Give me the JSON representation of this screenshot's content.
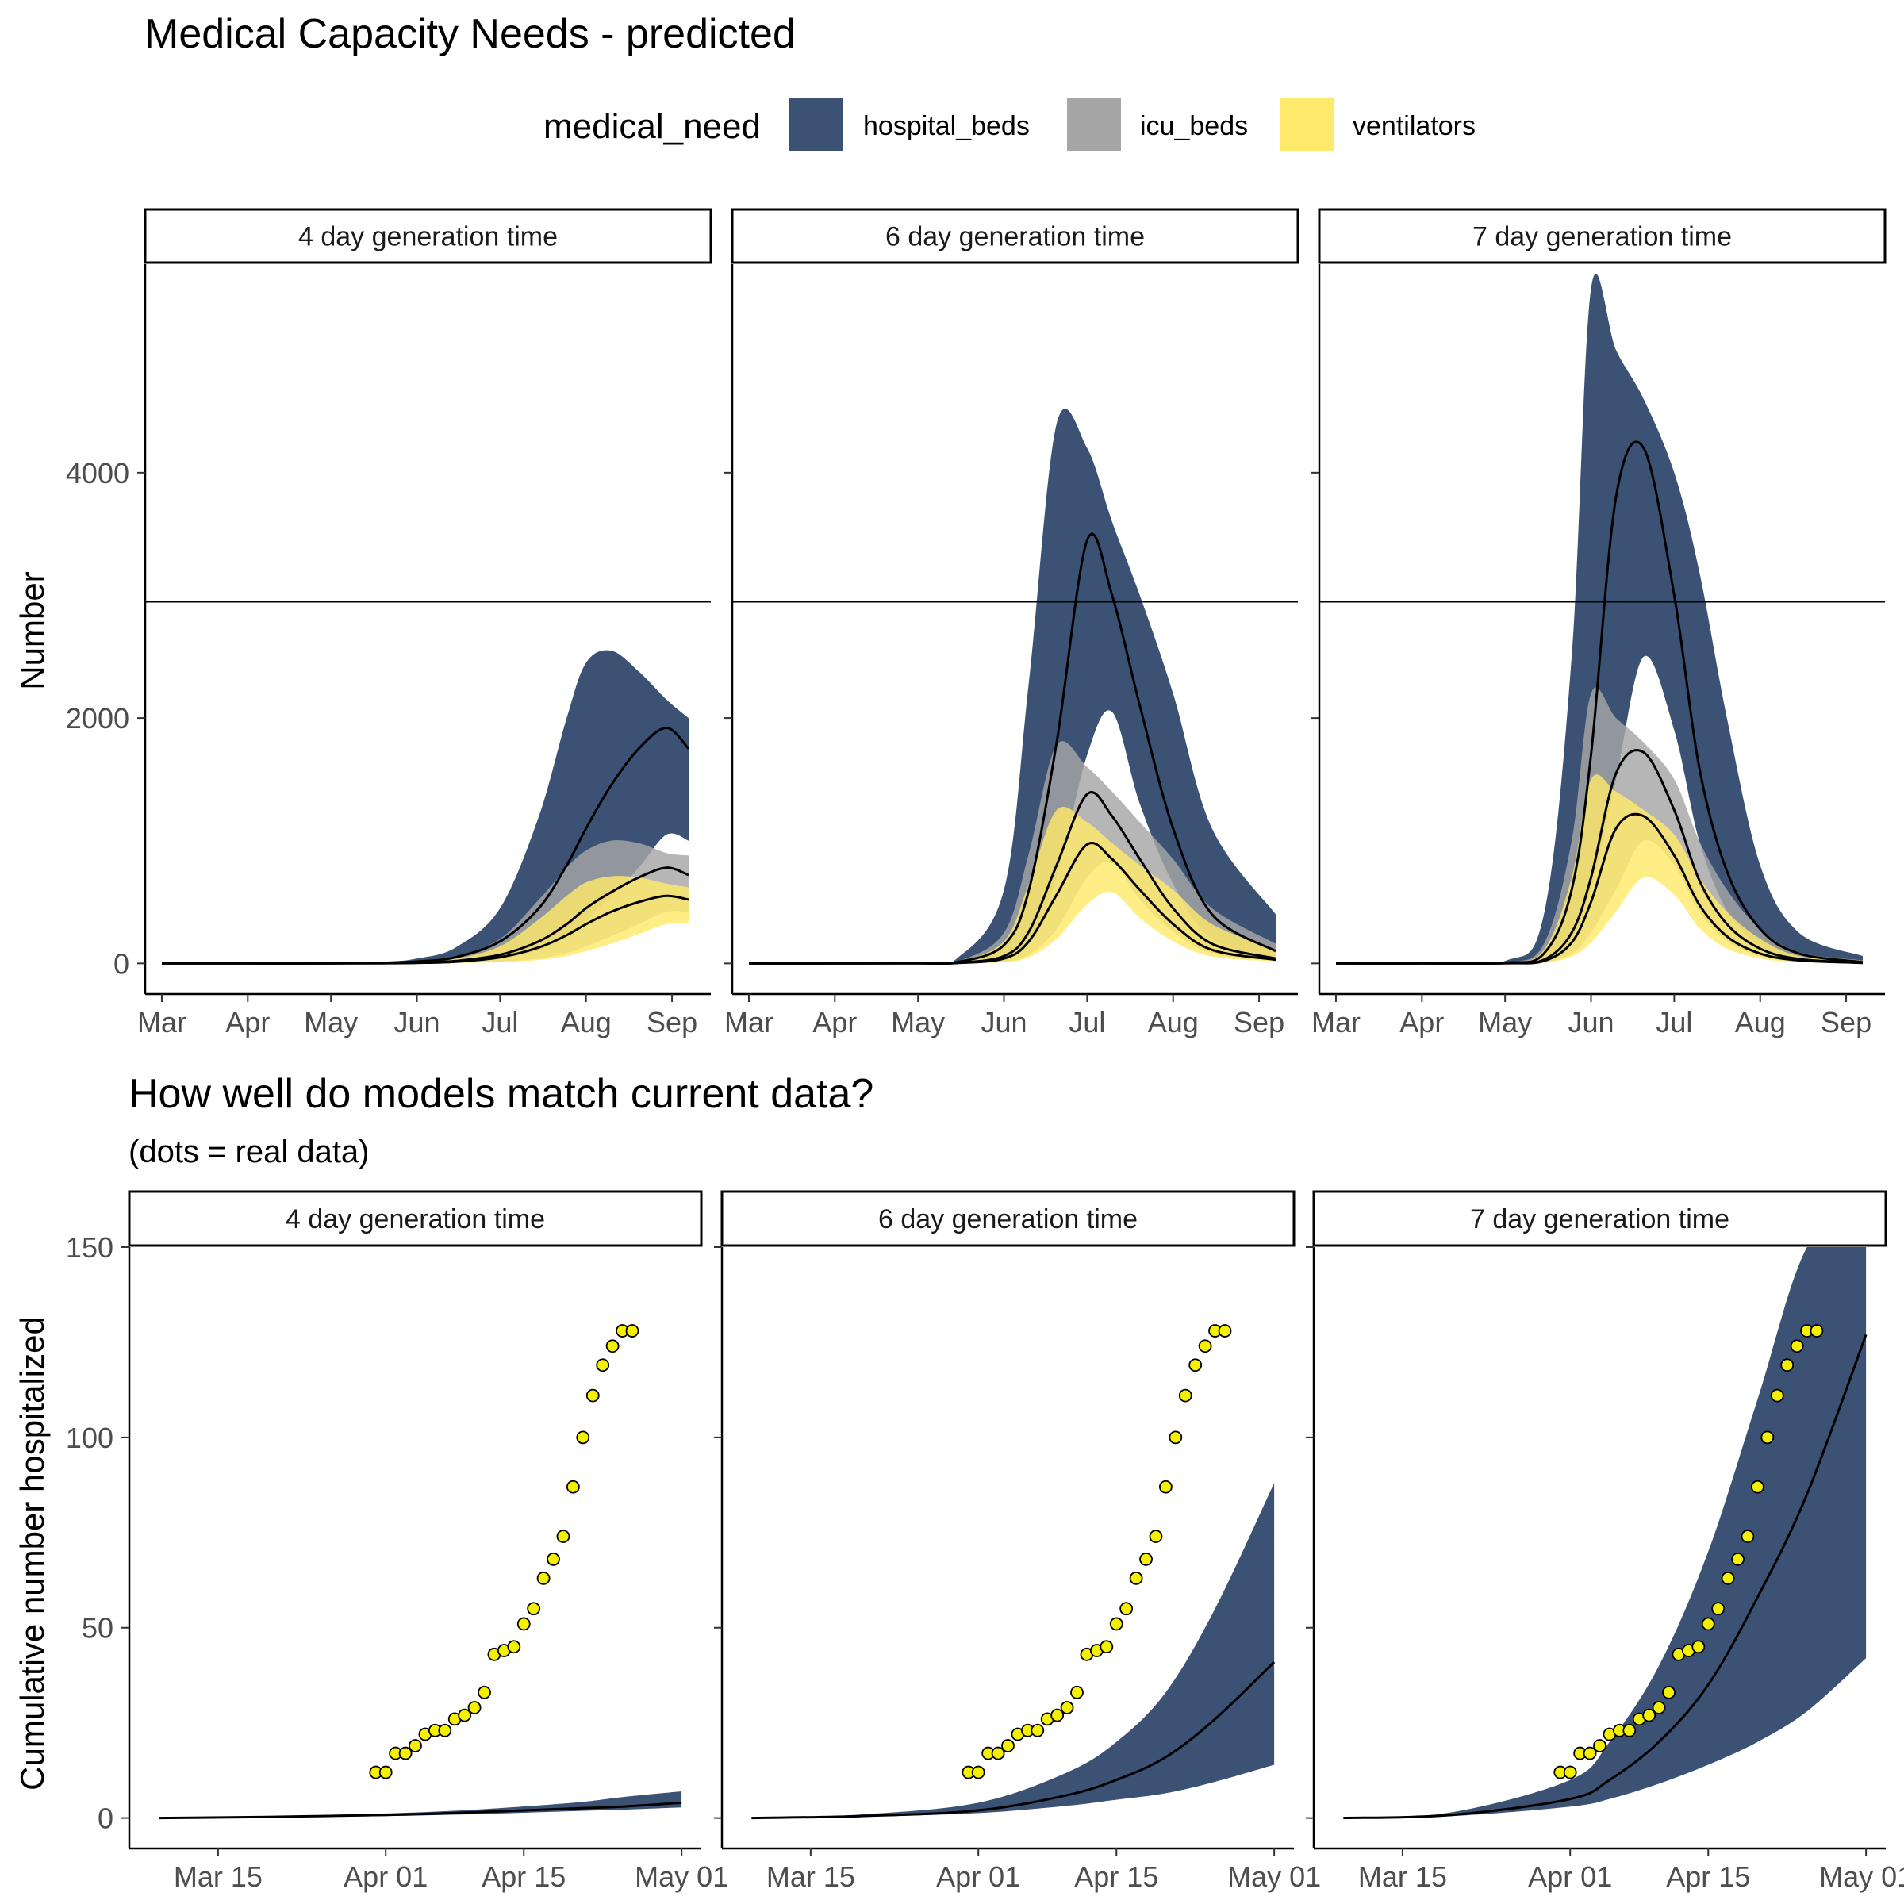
{
  "colors": {
    "hospital_beds": "#3b5275",
    "icu_beds": "#a6a6a6",
    "ventilators": "#ffe96b",
    "dot_fill": "#f4f000",
    "line": "#000000"
  },
  "legend": {
    "title": "medical_need",
    "items": [
      "hospital_beds",
      "icu_beds",
      "ventilators"
    ]
  },
  "chart_data": [
    {
      "type": "area",
      "title": "Medical Capacity Needs - predicted",
      "ylabel": "Number",
      "xlabel": "",
      "x_axis": "date",
      "xlim": [
        "2020-02-24",
        "2020-09-15"
      ],
      "ylim": [
        -250,
        5700
      ],
      "y_ticks": [
        0,
        2000,
        4000
      ],
      "x_ticks": [
        {
          "date": "2020-03-01",
          "label": "Mar"
        },
        {
          "date": "2020-04-01",
          "label": "Apr"
        },
        {
          "date": "2020-05-01",
          "label": "May"
        },
        {
          "date": "2020-06-01",
          "label": "Jun"
        },
        {
          "date": "2020-07-01",
          "label": "Jul"
        },
        {
          "date": "2020-08-01",
          "label": "Aug"
        },
        {
          "date": "2020-09-01",
          "label": "Sep"
        }
      ],
      "capacity_line": 2950,
      "grid": false,
      "legend_position": "top",
      "panels": [
        {
          "label": "4 day generation time",
          "series": [
            {
              "name": "hospital_beds",
              "x": [
                "2020-03-01",
                "2020-04-01",
                "2020-05-01",
                "2020-05-20",
                "2020-06-01",
                "2020-06-15",
                "2020-07-01",
                "2020-07-15",
                "2020-07-25",
                "2020-08-01",
                "2020-08-10",
                "2020-08-20",
                "2020-08-30",
                "2020-09-07"
              ],
              "median": [
                0,
                0,
                0,
                5,
                15,
                50,
                180,
                450,
                800,
                1100,
                1450,
                1750,
                1920,
                1750
              ],
              "lower": [
                0,
                0,
                0,
                0,
                3,
                10,
                40,
                110,
                220,
                350,
                550,
                780,
                1050,
                1000
              ],
              "upper": [
                0,
                0,
                0,
                12,
                40,
                130,
                450,
                1200,
                2000,
                2450,
                2550,
                2380,
                2150,
                2000
              ]
            },
            {
              "name": "icu_beds",
              "x": [
                "2020-03-01",
                "2020-04-01",
                "2020-05-01",
                "2020-05-20",
                "2020-06-01",
                "2020-06-15",
                "2020-07-01",
                "2020-07-15",
                "2020-07-25",
                "2020-08-01",
                "2020-08-10",
                "2020-08-20",
                "2020-08-30",
                "2020-09-07"
              ],
              "median": [
                0,
                0,
                0,
                2,
                6,
                20,
                70,
                180,
                320,
                450,
                580,
                700,
                780,
                720
              ],
              "lower": [
                0,
                0,
                0,
                0,
                1,
                4,
                15,
                40,
                85,
                140,
                220,
                320,
                420,
                420
              ],
              "upper": [
                0,
                0,
                0,
                5,
                15,
                55,
                200,
                520,
                780,
                920,
                1000,
                980,
                900,
                880
              ]
            },
            {
              "name": "ventilators",
              "x": [
                "2020-03-01",
                "2020-04-01",
                "2020-05-01",
                "2020-05-20",
                "2020-06-01",
                "2020-06-15",
                "2020-07-01",
                "2020-07-15",
                "2020-07-25",
                "2020-08-01",
                "2020-08-10",
                "2020-08-20",
                "2020-08-30",
                "2020-09-07"
              ],
              "median": [
                0,
                0,
                0,
                1,
                4,
                14,
                50,
                130,
                230,
                320,
                420,
                500,
                550,
                520
              ],
              "lower": [
                0,
                0,
                0,
                0,
                1,
                3,
                10,
                28,
                60,
                100,
                160,
                240,
                320,
                330
              ],
              "upper": [
                0,
                0,
                0,
                4,
                11,
                38,
                140,
                360,
                550,
                660,
                710,
                700,
                650,
                620
              ]
            }
          ]
        },
        {
          "label": "6 day generation time",
          "series": [
            {
              "name": "hospital_beds",
              "x": [
                "2020-03-01",
                "2020-04-01",
                "2020-05-01",
                "2020-05-15",
                "2020-06-01",
                "2020-06-10",
                "2020-06-20",
                "2020-07-01",
                "2020-07-10",
                "2020-07-20",
                "2020-08-01",
                "2020-08-15",
                "2020-09-07"
              ],
              "median": [
                0,
                0,
                2,
                10,
                150,
                600,
                1800,
                3450,
                3000,
                2100,
                1100,
                400,
                100
              ],
              "lower": [
                0,
                0,
                0,
                2,
                40,
                180,
                700,
                1700,
                2050,
                1300,
                650,
                200,
                50
              ],
              "upper": [
                0,
                0,
                6,
                40,
                600,
                2300,
                4400,
                4200,
                3600,
                3000,
                2200,
                1100,
                400
              ]
            },
            {
              "name": "icu_beds",
              "x": [
                "2020-03-01",
                "2020-04-01",
                "2020-05-01",
                "2020-05-15",
                "2020-06-01",
                "2020-06-10",
                "2020-06-20",
                "2020-07-01",
                "2020-07-10",
                "2020-07-20",
                "2020-08-01",
                "2020-08-15",
                "2020-09-07"
              ],
              "median": [
                0,
                0,
                1,
                4,
                60,
                260,
                800,
                1380,
                1200,
                850,
                450,
                160,
                40
              ],
              "lower": [
                0,
                0,
                0,
                1,
                15,
                70,
                280,
                700,
                820,
                520,
                260,
                80,
                20
              ],
              "upper": [
                0,
                0,
                2,
                15,
                250,
                900,
                1780,
                1600,
                1400,
                1150,
                850,
                450,
                160
              ]
            },
            {
              "name": "ventilators",
              "x": [
                "2020-03-01",
                "2020-04-01",
                "2020-05-01",
                "2020-05-15",
                "2020-06-01",
                "2020-06-10",
                "2020-06-20",
                "2020-07-01",
                "2020-07-10",
                "2020-07-20",
                "2020-08-01",
                "2020-08-15",
                "2020-09-07"
              ],
              "median": [
                0,
                0,
                1,
                3,
                40,
                180,
                560,
                970,
                850,
                600,
                320,
                110,
                30
              ],
              "lower": [
                0,
                0,
                0,
                1,
                10,
                50,
                200,
                480,
                580,
                370,
                180,
                55,
                15
              ],
              "upper": [
                0,
                0,
                2,
                10,
                180,
                650,
                1250,
                1150,
                980,
                800,
                600,
                320,
                110
              ]
            }
          ]
        },
        {
          "label": "7 day generation time",
          "series": [
            {
              "name": "hospital_beds",
              "x": [
                "2020-03-01",
                "2020-04-01",
                "2020-05-01",
                "2020-05-15",
                "2020-05-25",
                "2020-06-01",
                "2020-06-10",
                "2020-06-20",
                "2020-07-01",
                "2020-07-10",
                "2020-07-20",
                "2020-08-01",
                "2020-08-15",
                "2020-09-07"
              ],
              "median": [
                0,
                0,
                5,
                80,
                600,
                1700,
                3800,
                4200,
                3000,
                1600,
                750,
                280,
                80,
                10
              ],
              "lower": [
                0,
                0,
                1,
                20,
                200,
                600,
                1500,
                2500,
                1900,
                1000,
                430,
                140,
                35,
                5
              ],
              "upper": [
                0,
                0,
                20,
                400,
                2500,
                5500,
                5000,
                4600,
                4000,
                3200,
                2000,
                800,
                250,
                60
              ]
            },
            {
              "name": "icu_beds",
              "x": [
                "2020-03-01",
                "2020-04-01",
                "2020-05-01",
                "2020-05-15",
                "2020-05-25",
                "2020-06-01",
                "2020-06-10",
                "2020-06-20",
                "2020-07-01",
                "2020-07-10",
                "2020-07-20",
                "2020-08-01",
                "2020-08-15",
                "2020-09-07"
              ],
              "median": [
                0,
                0,
                2,
                30,
                250,
                700,
                1550,
                1720,
                1250,
                680,
                320,
                120,
                35,
                5
              ],
              "lower": [
                0,
                0,
                0,
                8,
                80,
                250,
                600,
                1000,
                800,
                420,
                180,
                60,
                15,
                2
              ],
              "upper": [
                0,
                0,
                8,
                160,
                1000,
                2200,
                2000,
                1800,
                1500,
                1000,
                600,
                280,
                90,
                25
              ]
            },
            {
              "name": "ventilators",
              "x": [
                "2020-03-01",
                "2020-04-01",
                "2020-05-01",
                "2020-05-15",
                "2020-05-25",
                "2020-06-01",
                "2020-06-10",
                "2020-06-20",
                "2020-07-01",
                "2020-07-10",
                "2020-07-20",
                "2020-08-01",
                "2020-08-15",
                "2020-09-07"
              ],
              "median": [
                0,
                0,
                1,
                20,
                170,
                500,
                1100,
                1200,
                880,
                480,
                220,
                80,
                25,
                4
              ],
              "lower": [
                0,
                0,
                0,
                5,
                55,
                170,
                420,
                700,
                560,
                290,
                120,
                40,
                10,
                1
              ],
              "upper": [
                0,
                0,
                5,
                110,
                700,
                1500,
                1400,
                1250,
                1050,
                700,
                420,
                200,
                60,
                18
              ]
            }
          ]
        }
      ]
    },
    {
      "type": "area",
      "title": "How well do models match current data?",
      "subtitle": "(dots = real data)",
      "ylabel": "Cumulative number hospitalized",
      "xlabel": "",
      "x_axis": "date",
      "xlim": [
        "2020-03-06",
        "2020-05-03"
      ],
      "ylim": [
        -8,
        150
      ],
      "y_ticks": [
        0,
        50,
        100,
        150
      ],
      "x_ticks": [
        {
          "date": "2020-03-15",
          "label": "Mar 15"
        },
        {
          "date": "2020-04-01",
          "label": "Apr 01"
        },
        {
          "date": "2020-04-15",
          "label": "Apr 15"
        },
        {
          "date": "2020-05-01",
          "label": "May 01"
        }
      ],
      "grid": false,
      "observed": {
        "x": [
          "2020-03-31",
          "2020-04-01",
          "2020-04-02",
          "2020-04-03",
          "2020-04-04",
          "2020-04-05",
          "2020-04-06",
          "2020-04-07",
          "2020-04-08",
          "2020-04-09",
          "2020-04-10",
          "2020-04-11",
          "2020-04-12",
          "2020-04-13",
          "2020-04-14",
          "2020-04-15",
          "2020-04-16",
          "2020-04-17",
          "2020-04-18",
          "2020-04-19",
          "2020-04-20",
          "2020-04-21",
          "2020-04-22",
          "2020-04-23",
          "2020-04-24",
          "2020-04-25",
          "2020-04-26"
        ],
        "y": [
          12,
          12,
          17,
          17,
          19,
          22,
          23,
          23,
          26,
          27,
          29,
          33,
          43,
          44,
          45,
          51,
          55,
          63,
          68,
          74,
          87,
          100,
          111,
          119,
          124,
          128,
          128
        ]
      },
      "panels": [
        {
          "label": "4 day generation time",
          "series": [
            {
              "name": "hospital_beds",
              "x": [
                "2020-03-09",
                "2020-03-20",
                "2020-04-01",
                "2020-04-10",
                "2020-04-20",
                "2020-04-25",
                "2020-05-01"
              ],
              "median": [
                0,
                0.3,
                0.8,
                1.5,
                2.5,
                3,
                4
              ],
              "lower": [
                0,
                0.2,
                0.5,
                1.0,
                1.8,
                2.2,
                2.8
              ],
              "upper": [
                0,
                0.5,
                1.2,
                2.2,
                4,
                5.5,
                7
              ]
            }
          ]
        },
        {
          "label": "6 day generation time",
          "series": [
            {
              "name": "hospital_beds",
              "x": [
                "2020-03-09",
                "2020-03-20",
                "2020-04-01",
                "2020-04-10",
                "2020-04-15",
                "2020-04-20",
                "2020-04-25",
                "2020-05-01"
              ],
              "median": [
                0,
                0.5,
                2,
                6,
                10,
                16,
                26,
                41
              ],
              "lower": [
                0,
                0.3,
                1.3,
                3.2,
                4.8,
                6.5,
                9.5,
                14
              ],
              "upper": [
                0,
                0.9,
                4,
                12,
                20,
                33,
                55,
                88
              ]
            }
          ]
        },
        {
          "label": "7 day generation time",
          "series": [
            {
              "name": "hospital_beds",
              "x": [
                "2020-03-09",
                "2020-03-20",
                "2020-04-01",
                "2020-04-05",
                "2020-04-10",
                "2020-04-15",
                "2020-04-20",
                "2020-04-25",
                "2020-05-01"
              ],
              "median": [
                0,
                0.8,
                5,
                10,
                20,
                35,
                58,
                85,
                127
              ],
              "lower": [
                0,
                0.5,
                3,
                5,
                9,
                14,
                20,
                28,
                42
              ],
              "upper": [
                0,
                1.5,
                10,
                20,
                40,
                70,
                110,
                150,
                165
              ]
            }
          ]
        }
      ]
    }
  ]
}
